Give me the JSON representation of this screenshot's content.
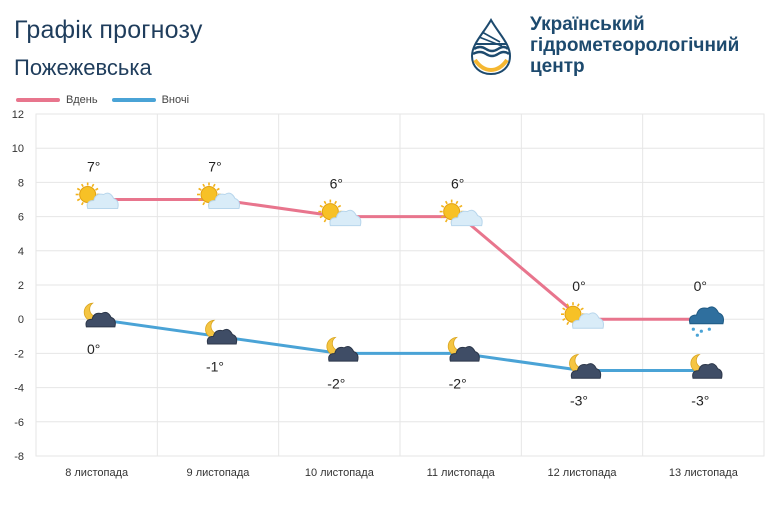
{
  "header": {
    "title": "Графік прогнозу",
    "location": "Пожежевська"
  },
  "logo": {
    "line1": "Український",
    "line2": "гідрометеорологічний",
    "line3": "центр",
    "icon": "water-drop-logo-icon"
  },
  "colors": {
    "day": "#e8758d",
    "night": "#4aa3d6",
    "grid": "#e6e6e6",
    "text": "#333333"
  },
  "chart_data": {
    "type": "line",
    "categories": [
      "8 листопада",
      "9 листопада",
      "10 листопада",
      "11 листопада",
      "12 листопада",
      "13 листопада"
    ],
    "series": [
      {
        "name": "Вдень",
        "values": [
          7,
          7,
          6,
          6,
          0,
          0
        ],
        "labels": [
          "7°",
          "7°",
          "6°",
          "6°",
          "0°",
          "0°"
        ],
        "icons": [
          "sun-cloud-icon",
          "sun-cloud-icon",
          "sun-cloud-icon",
          "sun-cloud-icon",
          "sun-cloud-icon",
          "snow-rain-cloud-icon"
        ]
      },
      {
        "name": "Вночі",
        "values": [
          0,
          -1,
          -2,
          -2,
          -3,
          -3
        ],
        "labels": [
          "0°",
          "-1°",
          "-2°",
          "-2°",
          "-3°",
          "-3°"
        ],
        "icons": [
          "moon-cloud-icon",
          "moon-cloud-icon",
          "moon-cloud-icon",
          "moon-cloud-icon",
          "moon-cloud-icon",
          "moon-cloud-icon"
        ]
      }
    ],
    "ylim": [
      -8,
      12
    ],
    "yticks": [
      "12",
      "10",
      "8",
      "6",
      "4",
      "2",
      "0",
      "-2",
      "-4",
      "-6",
      "-8"
    ],
    "grid": true,
    "legend": "top-left"
  }
}
